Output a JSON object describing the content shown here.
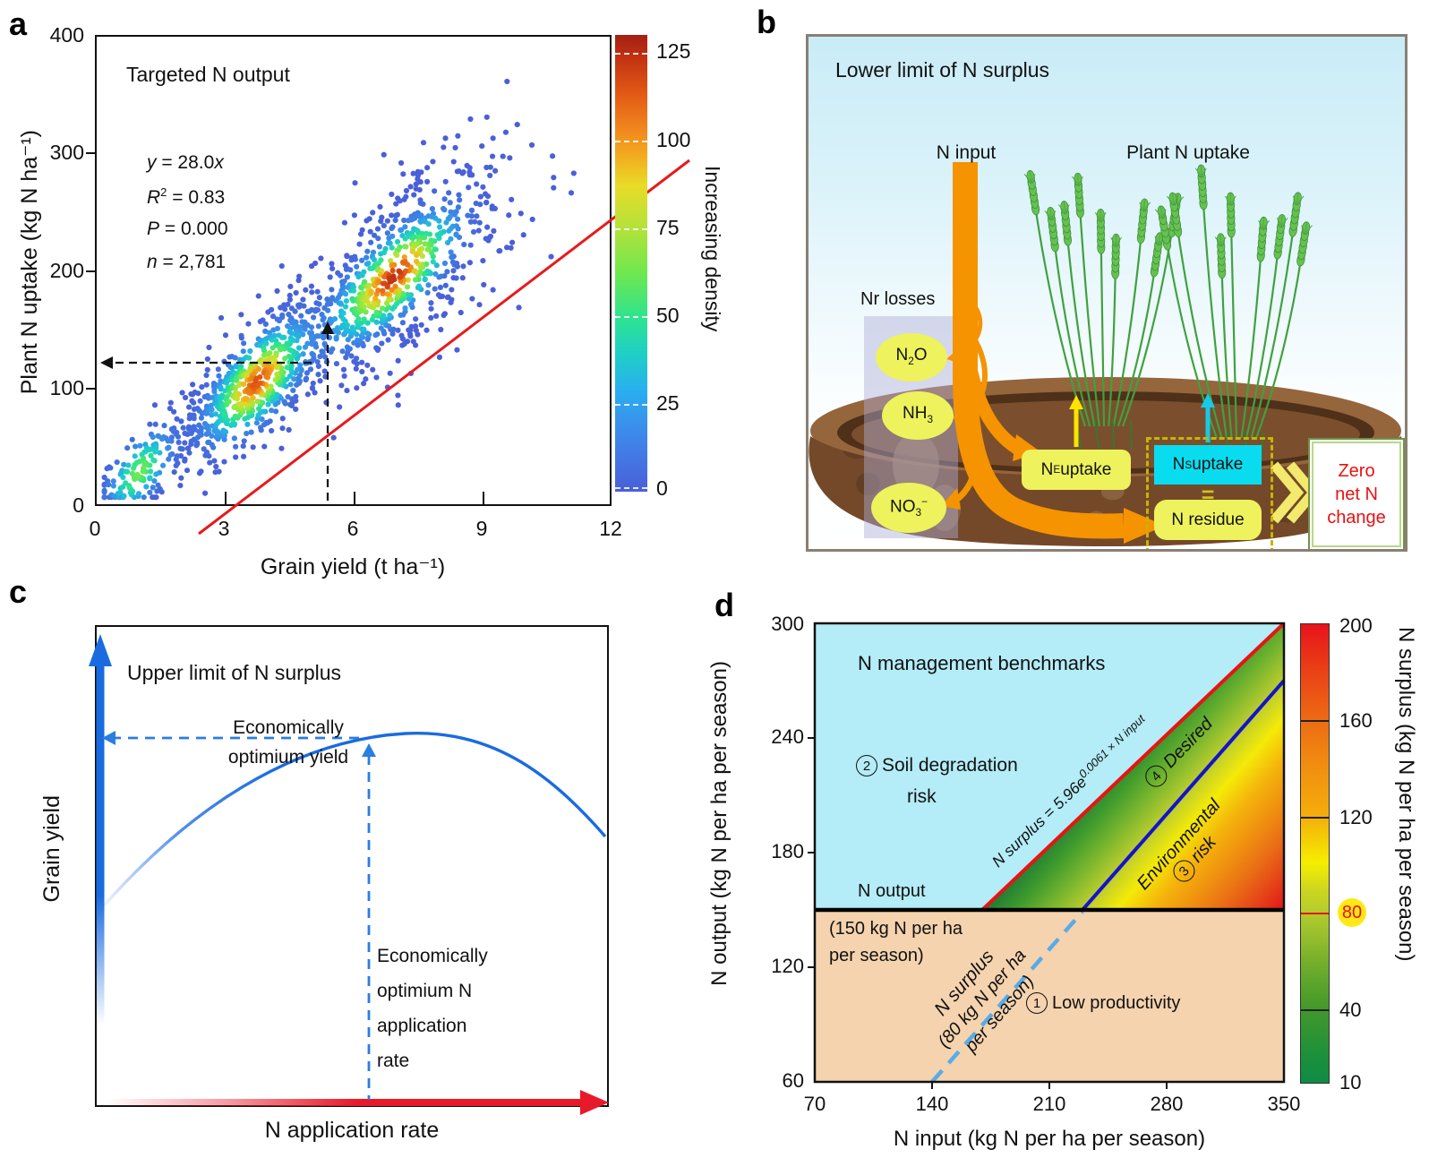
{
  "a": {
    "label": "a",
    "title": "Targeted N output",
    "stats": [
      {
        "v": "y",
        "rest": " = 28.0",
        "t": "x"
      },
      {
        "v": "R",
        "sup": "2",
        "rest": " = 0.83"
      },
      {
        "v": "P",
        "rest": " = 0.000"
      },
      {
        "v": "n",
        "rest": " = 2,781"
      }
    ],
    "xlabel": "Grain yield (t ha⁻¹)",
    "ylabel": "Plant N uptake (kg N ha⁻¹)",
    "xticks": [
      "0",
      "3",
      "6",
      "9",
      "12"
    ],
    "yticks": [
      "0",
      "100",
      "200",
      "300",
      "400"
    ],
    "colorbar": {
      "label": "Increasing density",
      "ticks": [
        "0",
        "25",
        "50",
        "75",
        "100",
        "125"
      ]
    }
  },
  "b": {
    "label": "b",
    "title": "Lower limit of N surplus",
    "n_input": "N input",
    "plant_uptake": "Plant N uptake",
    "nr_losses": "Nr losses",
    "n2o": {
      "pre": "N",
      "sub": "2",
      "post": "O"
    },
    "nh3": {
      "pre": "NH",
      "sub": "3",
      "post": ""
    },
    "no3": {
      "pre": "NO",
      "sub": "3",
      "post": "",
      "sup": "−"
    },
    "ne_box": {
      "pre": "N",
      "sub": "E",
      "post": " uptake"
    },
    "ns_box": {
      "pre": "N",
      "sub": "S",
      "post": " uptake"
    },
    "equals": "=",
    "residue_box": "N residue",
    "zero_box": [
      "Zero",
      "net N",
      "change"
    ]
  },
  "c": {
    "label": "c",
    "title": "Upper limit of N surplus",
    "opt_yield": [
      "Economically",
      "optimium yield"
    ],
    "opt_rate": [
      "Economically",
      "optimium N",
      "application",
      "rate"
    ],
    "xlabel": "N application rate",
    "ylabel": "Grain yield"
  },
  "d": {
    "label": "d",
    "title": "N management benchmarks",
    "region1": {
      "num": "1",
      "text": "Low productivity"
    },
    "region2": {
      "num": "2",
      "line1": "Soil degradation",
      "line2": "risk"
    },
    "region3": {
      "num": "3",
      "line1": "Environmental",
      "line2": "risk"
    },
    "region4": {
      "num": "4",
      "text": "Desired"
    },
    "formula": {
      "base": "N surplus = 5.96e",
      "exp": "0.0061 × N input"
    },
    "n_output_label": "N output",
    "n_output_value": [
      "(150 kg N per ha",
      "per season)"
    ],
    "surplus_line_label": [
      "N surplus",
      "(80 kg N per ha",
      "per season)"
    ],
    "xlabel": "N input (kg N per ha per season)",
    "ylabel": "N output (kg N per ha per season)",
    "xticks": [
      "70",
      "140",
      "210",
      "280",
      "350"
    ],
    "yticks": [
      "60",
      "120",
      "180",
      "240",
      "300"
    ],
    "colorbar": {
      "label": "N surplus (kg N per ha per season)",
      "ticks": [
        "200",
        "160",
        "120",
        "80",
        "40",
        "10"
      ],
      "highlight": "80"
    }
  },
  "colors": {
    "fit_line_red": "#e8191c",
    "orange_flow": "#f59300",
    "yellow_box": "#eef25c",
    "cyan_box": "#0adcf0",
    "dashed_box_yellow": "#c9b400",
    "zero_text_red": "#e81111",
    "panel_c_blue": "#1a6be0",
    "panel_c_red": "#e81a2a",
    "d_cyan_region": "#b4ecf7",
    "d_peach_region": "#f4d3ae",
    "d_red_line": "#e81414",
    "d_blue_line": "#1414cc",
    "d_dashed_blue": "#58abe8",
    "d_highlight_circle": "#ffe817"
  },
  "chart_data": [
    {
      "id": "a",
      "type": "scatter",
      "title": "Targeted N output",
      "xlabel": "Grain yield (t ha⁻¹)",
      "ylabel": "Plant N uptake (kg N ha⁻¹)",
      "xlim": [
        0,
        12
      ],
      "ylim": [
        0,
        400
      ],
      "xticks": [
        0,
        3,
        6,
        9,
        12
      ],
      "yticks": [
        0,
        100,
        200,
        300,
        400
      ],
      "fit": {
        "equation": "y = 28.0x",
        "slope": 28.0,
        "r2": 0.83,
        "p": "0.000",
        "n": 2781
      },
      "fit_line_x": [
        0.17,
        11.6
      ],
      "annotation": {
        "dashed_target_x": 5.36,
        "dashed_target_y": 150
      },
      "colorbar": {
        "label": "Increasing density",
        "min": 0,
        "max": 130,
        "ticks": [
          0,
          25,
          50,
          75,
          100,
          125
        ]
      },
      "point_generation": {
        "seed": 7,
        "n_points": 1500,
        "resid_sd_base": 13,
        "resid_sd_slope": 3.2,
        "x_clamp": [
          0.18,
          11.78
        ],
        "y_clamp": [
          6,
          394
        ],
        "clusters": [
          {
            "weight": 0.08,
            "mu": 1.0,
            "sigma": 0.5,
            "dw": 0.55,
            "dsig": 0.4,
            "rsig": 20
          },
          {
            "weight": 0.42,
            "mu": 3.75,
            "sigma": 0.95,
            "dw": 0.95,
            "dsig": 0.6,
            "rsig": 26
          },
          {
            "weight": 0.42,
            "mu": 6.95,
            "sigma": 1.05,
            "dw": 1.0,
            "dsig": 0.75,
            "rsig": 26
          },
          {
            "weight": 0.08,
            "uniform": [
              0.3,
              11.5
            ],
            "dw": 0,
            "dsig": 1,
            "rsig": 1
          }
        ],
        "jet_stops": [
          [
            0,
            "#4a5fd8"
          ],
          [
            0.15,
            "#3a8ee8"
          ],
          [
            0.25,
            "#24b8e0"
          ],
          [
            0.33,
            "#1fd0c0"
          ],
          [
            0.42,
            "#2ae294"
          ],
          [
            0.52,
            "#5ce85e"
          ],
          [
            0.62,
            "#9fe83c"
          ],
          [
            0.72,
            "#d8dc2a"
          ],
          [
            0.8,
            "#f0b01e"
          ],
          [
            0.88,
            "#ee8316"
          ],
          [
            0.94,
            "#e05514"
          ],
          [
            1,
            "#c03014"
          ]
        ]
      }
    },
    {
      "id": "c",
      "type": "line",
      "title": "Upper limit of N surplus",
      "xlabel": "N application rate",
      "ylabel": "Grain yield",
      "curve": "concave yield response: rises from origin, maximum at economically optimum N rate (~60% of axis), declines thereafter",
      "annotations": [
        "Economically optimium yield (dashed arrow to y-axis)",
        "Economically optimium N application rate (dashed line to x-axis)"
      ]
    },
    {
      "id": "d",
      "type": "heatmap",
      "title": "N management benchmarks",
      "xlabel": "N input (kg N per ha per season)",
      "ylabel": "N output (kg N per ha per season)",
      "xlim": [
        70,
        350
      ],
      "ylim": [
        60,
        300
      ],
      "xticks": [
        70,
        140,
        210,
        280,
        350
      ],
      "yticks": [
        60,
        120,
        180,
        240,
        300
      ],
      "lines": [
        {
          "name": "N output threshold",
          "value_y": 150,
          "label": "N output (150 kg N per ha per season)",
          "style": "solid black"
        },
        {
          "name": "upper limit of N surplus",
          "formula": "N surplus = 5.96e^(0.0061 × N input)",
          "from": [
            170,
            150
          ],
          "to": [
            350,
            300
          ],
          "style": "solid red"
        },
        {
          "name": "lower limit of N surplus = 80",
          "from": [
            230,
            150
          ],
          "to": [
            350,
            270
          ],
          "style": "solid blue"
        },
        {
          "name": "N surplus = 80 (below threshold)",
          "label": "N surplus (80 kg N per ha per season)",
          "from": [
            140,
            60
          ],
          "to": [
            230,
            150
          ],
          "style": "dashed light blue"
        }
      ],
      "regions": [
        {
          "num": 1,
          "name": "Low productivity",
          "where": "N output < 150"
        },
        {
          "num": 2,
          "name": "Soil degradation risk",
          "where": "above upper-limit red line"
        },
        {
          "num": 3,
          "name": "Environmental risk",
          "where": "N surplus > 80, N output > 150"
        },
        {
          "num": 4,
          "name": "Desired",
          "where": "between red and blue lines"
        }
      ],
      "colorbar": {
        "label": "N surplus (kg N per ha per season)",
        "min": 10,
        "max": 200,
        "ticks": [
          200,
          160,
          120,
          80,
          40,
          10
        ],
        "highlighted_tick": 80
      }
    }
  ]
}
